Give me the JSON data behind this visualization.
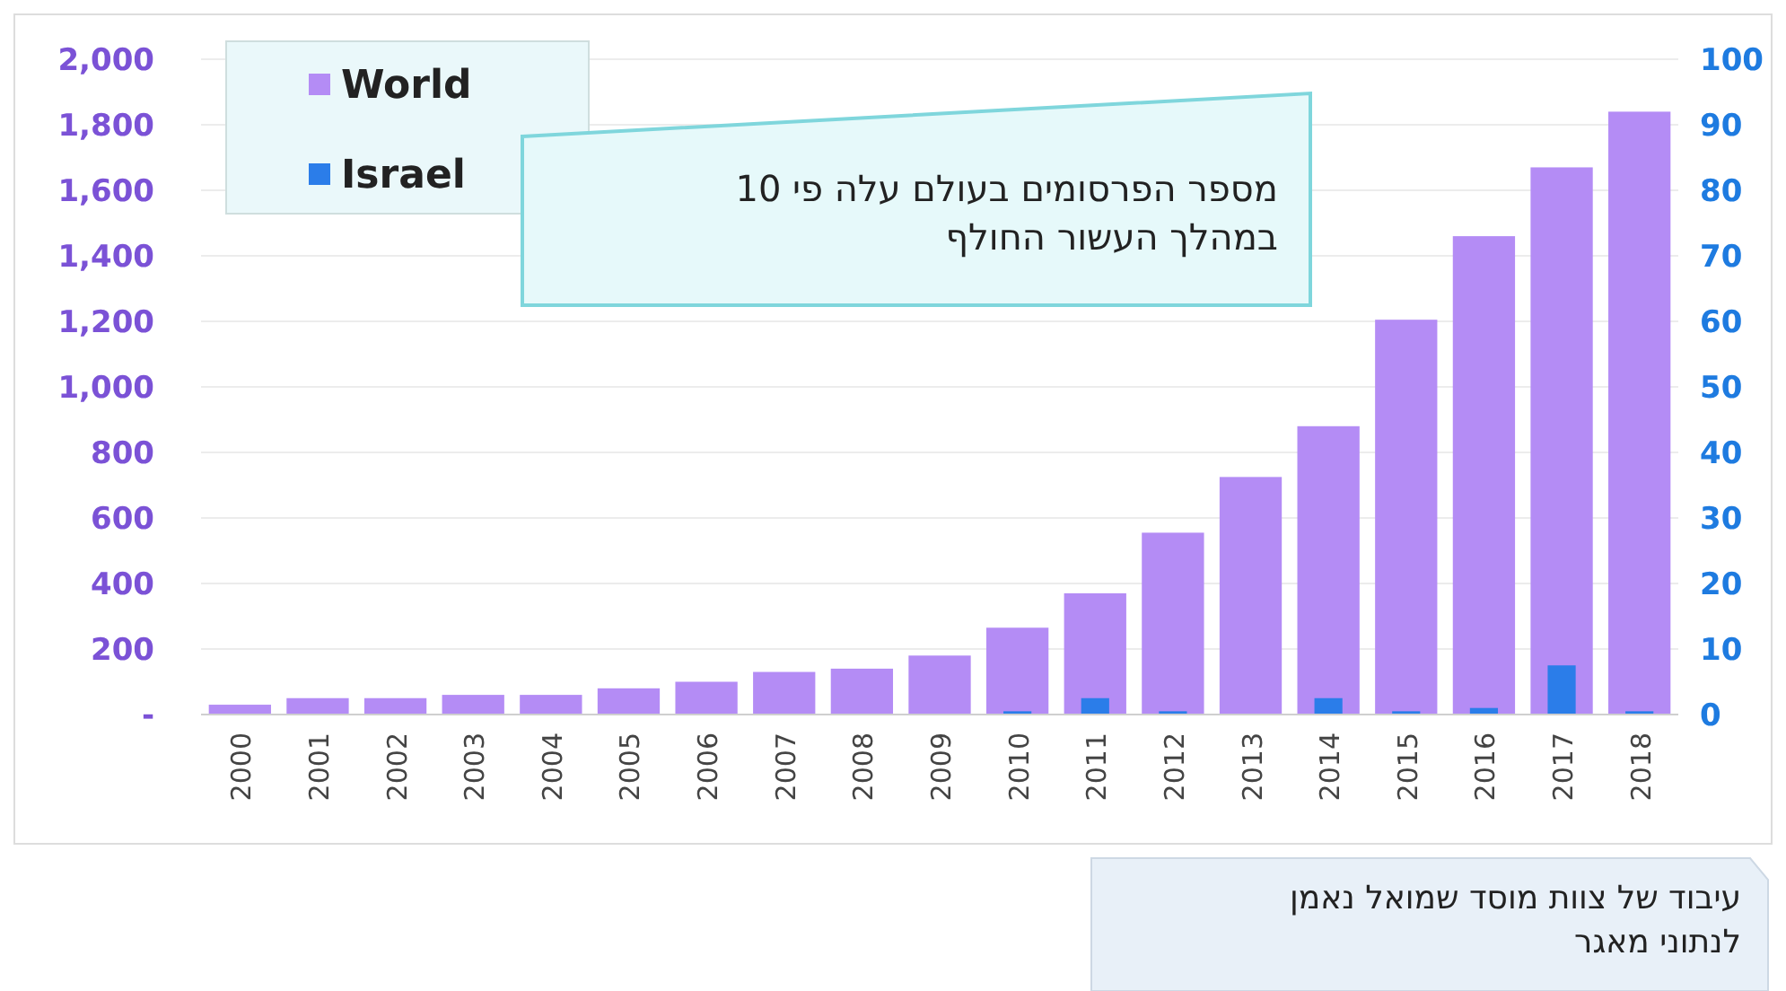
{
  "chart_data": {
    "type": "bar",
    "categories": [
      "2000",
      "2001",
      "2002",
      "2003",
      "2004",
      "2005",
      "2006",
      "2007",
      "2008",
      "2009",
      "2010",
      "2011",
      "2012",
      "2013",
      "2014",
      "2015",
      "2016",
      "2017",
      "2018"
    ],
    "series": [
      {
        "name": "World",
        "color": "#b48cf5",
        "values": [
          30,
          50,
          50,
          60,
          60,
          80,
          100,
          130,
          140,
          180,
          265,
          370,
          555,
          725,
          880,
          1205,
          1460,
          1670,
          1840
        ]
      },
      {
        "name": "Israel",
        "color": "#2b7de9",
        "axis": "y2",
        "values": [
          null,
          null,
          null,
          null,
          null,
          null,
          null,
          null,
          null,
          null,
          0.5,
          2.5,
          0.5,
          null,
          2.5,
          0.5,
          1,
          7.5,
          0.5
        ]
      }
    ],
    "ylim": [
      0,
      2000
    ],
    "yticks": [
      {
        "value": 0,
        "label": "-"
      },
      {
        "value": 200,
        "label": "200"
      },
      {
        "value": 400,
        "label": "400"
      },
      {
        "value": 600,
        "label": "600"
      },
      {
        "value": 800,
        "label": "800"
      },
      {
        "value": 1000,
        "label": "1,000"
      },
      {
        "value": 1200,
        "label": "1,200"
      },
      {
        "value": 1400,
        "label": "1,400"
      },
      {
        "value": 1600,
        "label": "1,600"
      },
      {
        "value": 1800,
        "label": "1,800"
      },
      {
        "value": 2000,
        "label": "2,000"
      }
    ],
    "y2lim": [
      0,
      100
    ],
    "y2ticks": [
      0,
      10,
      20,
      30,
      40,
      50,
      60,
      70,
      80,
      90,
      100
    ],
    "grid": "y",
    "legend": "top left",
    "annotations": [
      "מספר הפרסומים בעולם עלה פי 10\nבמהלך העשור החולף",
      "עיבוד של צוות מוסד שמואל נאמן\nלנתוני מאגר"
    ]
  }
}
